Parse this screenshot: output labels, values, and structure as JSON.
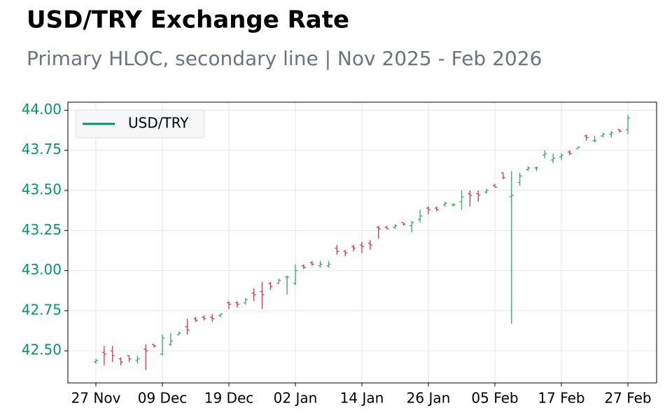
{
  "chart_data": {
    "type": "ohlc",
    "title": "USD/TRY Exchange Rate",
    "subtitle": "Primary HLOC, secondary line | Nov 2025 - Feb 2026",
    "categories": [
      "27 Nov",
      null,
      null,
      null,
      null,
      null,
      null,
      null,
      "09 Dec",
      null,
      null,
      null,
      null,
      null,
      null,
      null,
      "19 Dec",
      null,
      null,
      null,
      null,
      null,
      null,
      null,
      "02 Jan",
      null,
      null,
      null,
      null,
      null,
      null,
      null,
      "14 Jan",
      null,
      null,
      null,
      null,
      null,
      null,
      null,
      "26 Jan",
      null,
      null,
      null,
      null,
      null,
      null,
      null,
      "05 Feb",
      null,
      null,
      null,
      null,
      null,
      null,
      null,
      "17 Feb",
      null,
      null,
      null,
      null,
      null,
      null,
      null,
      "27 Feb"
    ],
    "series": [
      {
        "name": "USD/TRY",
        "color": "#009966",
        "up_color": "#2eaa62",
        "down_color": "#d9363e",
        "open": [
          42.43,
          42.49,
          42.5,
          42.45,
          42.47,
          42.44,
          42.51,
          42.54,
          42.48,
          42.54,
          42.6,
          42.65,
          42.7,
          42.71,
          42.71,
          42.72,
          42.8,
          42.8,
          42.8,
          42.86,
          42.87,
          42.92,
          42.92,
          42.96,
          42.92,
          43.03,
          43.05,
          43.03,
          43.03,
          43.14,
          43.12,
          43.15,
          43.16,
          43.17,
          43.27,
          43.27,
          43.27,
          43.3,
          43.28,
          43.32,
          43.39,
          43.39,
          43.41,
          43.41,
          43.43,
          43.48,
          43.48,
          43.49,
          43.53,
          43.61,
          43.46,
          43.55,
          43.63,
          43.64,
          43.72,
          43.69,
          43.71,
          43.74,
          43.76,
          43.84,
          43.81,
          43.84,
          43.85,
          43.88,
          43.88
        ],
        "high": [
          42.45,
          42.53,
          42.53,
          42.46,
          42.47,
          42.47,
          42.54,
          42.54,
          42.6,
          42.61,
          42.62,
          42.7,
          42.71,
          42.72,
          42.73,
          42.73,
          42.81,
          42.81,
          42.83,
          42.89,
          42.93,
          42.93,
          42.95,
          42.97,
          43.04,
          43.04,
          43.06,
          43.06,
          43.06,
          43.16,
          43.13,
          43.16,
          43.18,
          43.19,
          43.28,
          43.28,
          43.29,
          43.3,
          43.31,
          43.38,
          43.4,
          43.4,
          43.43,
          43.42,
          43.5,
          43.5,
          43.5,
          43.51,
          43.54,
          43.61,
          43.62,
          43.61,
          43.65,
          43.65,
          43.75,
          43.73,
          43.73,
          43.75,
          43.77,
          43.85,
          43.84,
          43.86,
          43.87,
          43.88,
          43.97
        ],
        "low": [
          42.42,
          42.41,
          42.43,
          42.41,
          42.43,
          42.42,
          42.38,
          42.52,
          42.47,
          42.53,
          42.6,
          42.6,
          42.68,
          42.69,
          42.68,
          42.71,
          42.76,
          42.77,
          42.79,
          42.81,
          42.76,
          42.88,
          42.92,
          42.85,
          42.91,
          43.01,
          43.03,
          43.02,
          43.02,
          43.1,
          43.09,
          43.12,
          43.11,
          43.13,
          43.2,
          43.26,
          43.26,
          43.28,
          43.24,
          43.3,
          43.35,
          43.37,
          43.4,
          43.4,
          43.38,
          43.4,
          43.43,
          43.48,
          43.52,
          43.57,
          42.67,
          43.53,
          43.62,
          43.62,
          43.7,
          43.67,
          43.69,
          43.72,
          43.76,
          43.81,
          43.8,
          43.83,
          43.83,
          43.86,
          43.85
        ],
        "close": [
          42.44,
          42.48,
          42.47,
          42.43,
          42.45,
          42.45,
          42.5,
          42.53,
          42.58,
          42.56,
          42.61,
          42.63,
          42.69,
          42.7,
          42.7,
          42.73,
          42.79,
          42.79,
          42.82,
          42.85,
          42.85,
          42.9,
          42.94,
          42.96,
          43.0,
          43.02,
          43.04,
          43.04,
          43.04,
          43.12,
          43.11,
          43.14,
          43.15,
          43.16,
          43.26,
          43.26,
          43.28,
          43.29,
          43.3,
          43.34,
          43.38,
          43.38,
          43.42,
          43.41,
          43.46,
          43.47,
          43.47,
          43.5,
          43.52,
          43.58,
          43.47,
          43.59,
          43.64,
          43.64,
          43.73,
          43.7,
          43.72,
          43.73,
          43.77,
          43.83,
          43.81,
          43.85,
          43.86,
          43.87,
          43.95
        ]
      }
    ],
    "ylim": [
      42.3,
      44.05
    ],
    "yticks": [
      {
        "value": 42.5,
        "label": "42.50"
      },
      {
        "value": 42.75,
        "label": "42.75"
      },
      {
        "value": 43,
        "label": "43.00"
      },
      {
        "value": 43.25,
        "label": "43.25"
      },
      {
        "value": 43.5,
        "label": "43.50"
      },
      {
        "value": 43.75,
        "label": "43.75"
      },
      {
        "value": 44,
        "label": "44.00"
      }
    ],
    "ytick_color": "#009966",
    "grid": true,
    "legend": "upper left"
  }
}
